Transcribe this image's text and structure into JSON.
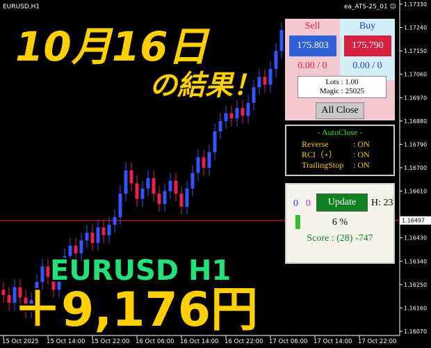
{
  "chart_data": {
    "type": "candlestick",
    "symbol_label": "EURUSD,H1",
    "ea_label": "ea_ATS-25_01 ☺",
    "up_color": "#3355ff",
    "down_color": "#e8204a",
    "ylim": [
      1.16054,
      1.17346
    ],
    "yticks": [
      {
        "value": 1.1733,
        "label": "1.17330"
      },
      {
        "value": 1.1724,
        "label": "1.17240"
      },
      {
        "value": 1.1715,
        "label": "1.17150"
      },
      {
        "value": 1.1706,
        "label": "1.17060"
      },
      {
        "value": 1.1697,
        "label": "1.16970"
      },
      {
        "value": 1.1688,
        "label": "1.16880"
      },
      {
        "value": 1.1679,
        "label": "1.16790"
      },
      {
        "value": 1.167,
        "label": "1.16700"
      },
      {
        "value": 1.1661,
        "label": "1.16610"
      },
      {
        "value": 1.1643,
        "label": "1.16430"
      },
      {
        "value": 1.1634,
        "label": "1.16340"
      },
      {
        "value": 1.1625,
        "label": "1.16250"
      },
      {
        "value": 1.1616,
        "label": "1.16160"
      },
      {
        "value": 1.1607,
        "label": "1.16070"
      }
    ],
    "current_price": 1.16497,
    "price_line_color": "#ff2020",
    "x_labels": [
      "15 Oct 2025",
      "15 Oct 14:00",
      "15 Oct 22:00",
      "16 Oct 06:00",
      "16 Oct 14:00",
      "16 Oct 22:00",
      "17 Oct 06:00",
      "17 Oct 14:00",
      "17 Oct 22:00"
    ],
    "candles": [
      [
        1.1623,
        1.1626,
        1.1618,
        1.1621
      ],
      [
        1.1621,
        1.1624,
        1.1615,
        1.1618
      ],
      [
        1.1618,
        1.1627,
        1.1615,
        1.1624
      ],
      [
        1.1624,
        1.1627,
        1.1617,
        1.162
      ],
      [
        1.162,
        1.1623,
        1.1612,
        1.1615
      ],
      [
        1.1615,
        1.1622,
        1.1612,
        1.1619
      ],
      [
        1.1619,
        1.1629,
        1.1616,
        1.1626
      ],
      [
        1.1626,
        1.1635,
        1.1623,
        1.1632
      ],
      [
        1.1632,
        1.1635,
        1.1625,
        1.1628
      ],
      [
        1.1628,
        1.1631,
        1.162,
        1.1623
      ],
      [
        1.1623,
        1.1633,
        1.162,
        1.163
      ],
      [
        1.163,
        1.1639,
        1.1627,
        1.1636
      ],
      [
        1.1636,
        1.1643,
        1.1633,
        1.164
      ],
      [
        1.164,
        1.1643,
        1.1634,
        1.1637
      ],
      [
        1.1637,
        1.1645,
        1.1634,
        1.1642
      ],
      [
        1.1642,
        1.1648,
        1.1639,
        1.1645
      ],
      [
        1.1645,
        1.1648,
        1.1638,
        1.1641
      ],
      [
        1.1641,
        1.165,
        1.1638,
        1.1647
      ],
      [
        1.1647,
        1.165,
        1.1641,
        1.1644
      ],
      [
        1.1644,
        1.1651,
        1.1641,
        1.1648
      ],
      [
        1.1648,
        1.1654,
        1.1645,
        1.1651
      ],
      [
        1.1651,
        1.1663,
        1.1648,
        1.166
      ],
      [
        1.166,
        1.1672,
        1.1657,
        1.1669
      ],
      [
        1.1669,
        1.1672,
        1.1661,
        1.1664
      ],
      [
        1.1664,
        1.1667,
        1.1655,
        1.1658
      ],
      [
        1.1658,
        1.1665,
        1.1655,
        1.1662
      ],
      [
        1.1662,
        1.1669,
        1.1659,
        1.1666
      ],
      [
        1.1666,
        1.1669,
        1.1657,
        1.166
      ],
      [
        1.166,
        1.1663,
        1.1653,
        1.1656
      ],
      [
        1.1656,
        1.1664,
        1.1653,
        1.1661
      ],
      [
        1.1661,
        1.1668,
        1.1658,
        1.1665
      ],
      [
        1.1665,
        1.1668,
        1.1657,
        1.166
      ],
      [
        1.166,
        1.1663,
        1.1652,
        1.1655
      ],
      [
        1.1655,
        1.1665,
        1.1652,
        1.1662
      ],
      [
        1.1662,
        1.1671,
        1.1659,
        1.1668
      ],
      [
        1.1668,
        1.1677,
        1.1665,
        1.1674
      ],
      [
        1.1674,
        1.1677,
        1.1667,
        1.167
      ],
      [
        1.167,
        1.1679,
        1.1667,
        1.1676
      ],
      [
        1.1676,
        1.1687,
        1.1673,
        1.1684
      ],
      [
        1.1684,
        1.1691,
        1.1681,
        1.1688
      ],
      [
        1.1688,
        1.1694,
        1.1685,
        1.1691
      ],
      [
        1.1691,
        1.1694,
        1.1686,
        1.1689
      ],
      [
        1.1689,
        1.1696,
        1.1686,
        1.1693
      ],
      [
        1.1693,
        1.1696,
        1.1687,
        1.169
      ],
      [
        1.169,
        1.1698,
        1.1687,
        1.1695
      ],
      [
        1.1695,
        1.1704,
        1.1692,
        1.1701
      ],
      [
        1.1701,
        1.1708,
        1.1698,
        1.1705
      ],
      [
        1.1705,
        1.1708,
        1.1699,
        1.1702
      ],
      [
        1.1702,
        1.1711,
        1.1699,
        1.1708
      ],
      [
        1.1708,
        1.1718,
        1.1705,
        1.1715
      ],
      [
        1.1715,
        1.1726,
        1.1712,
        1.1723
      ]
    ]
  },
  "overlay": {
    "date": "10月16日",
    "result": "の結果！",
    "pair": "EURUSD H1",
    "profit": "＋9,176円"
  },
  "trade_panel": {
    "sell": "Sell",
    "buy": "Buy",
    "sell_price": "175.803",
    "buy_price": "175.790",
    "sell_pl": "0.00 / 0",
    "buy_pl": "0.00 / 0",
    "lots": "Lots : 1.00",
    "magic": "Magic : 25025",
    "close_all": "All Close"
  },
  "autoclose_panel": {
    "title": "- AutoClose -",
    "rows": [
      [
        "Reverse",
        ": ON"
      ],
      [
        "RCI（+）",
        ": ON"
      ],
      [
        "TrailingStop",
        ": ON"
      ]
    ]
  },
  "score_panel": {
    "count_a": "0",
    "count_b": "0",
    "update": "Update",
    "hour": "H: 23",
    "percent": "6 %",
    "score": "Score : (28) -747"
  }
}
